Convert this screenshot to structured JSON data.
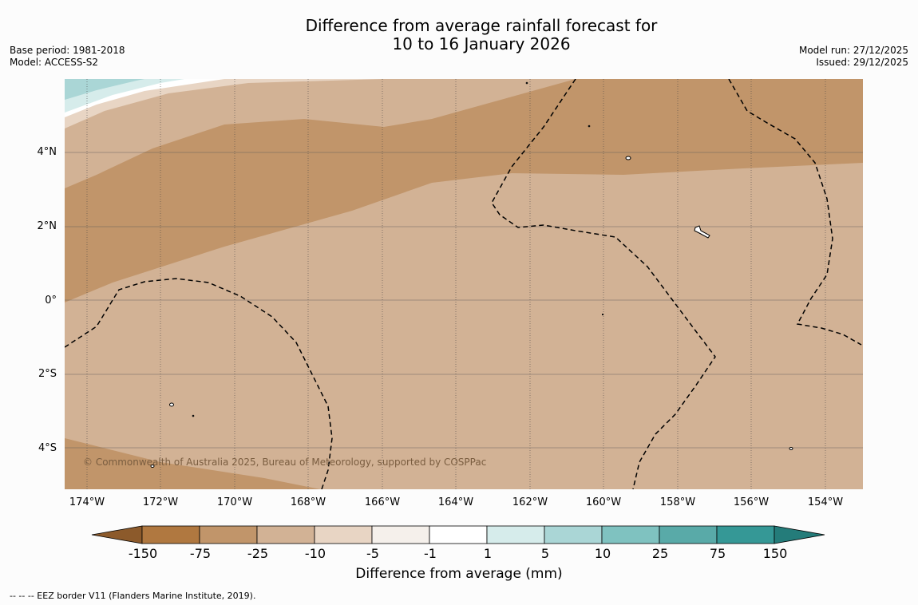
{
  "title": {
    "line1": "Difference from average rainfall forecast for",
    "line2": "10 to 16 January 2026"
  },
  "meta": {
    "base_period": "Base period: 1981-2018",
    "model": "Model: ACCESS-S2",
    "model_run": "Model run: 27/12/2025",
    "issued": "Issued: 29/12/2025"
  },
  "map": {
    "lat_labels": [
      "4°N",
      "2°N",
      "0°",
      "2°S",
      "4°S"
    ],
    "lon_labels": [
      "174°W",
      "172°W",
      "170°W",
      "168°W",
      "166°W",
      "164°W",
      "162°W",
      "160°W",
      "158°W",
      "156°W",
      "154°W"
    ],
    "lon_range": [
      -174.6,
      -153.1
    ],
    "lat_range": [
      -5.2,
      5.8
    ],
    "copyright": "© Commonwealth of Australia 2025, Bureau of Meteorology, supported by COSPPac"
  },
  "colorbar": {
    "title": "Difference from average (mm)",
    "ticks": [
      "-150",
      "-75",
      "-25",
      "-10",
      "-5",
      "-1",
      "1",
      "5",
      "10",
      "25",
      "75",
      "150"
    ],
    "colors": [
      "#8c5a2b",
      "#b07840",
      "#c1956a",
      "#d2b295",
      "#e8d5c4",
      "#f5f0eb",
      "#ffffff",
      "#d6eceb",
      "#aad6d6",
      "#7fc2c0",
      "#59aaa8",
      "#359896",
      "#247c7a"
    ]
  },
  "footer": {
    "eez_note": "--  --  -- EEZ border V11 (Flanders Marine Institute, 2019)."
  }
}
